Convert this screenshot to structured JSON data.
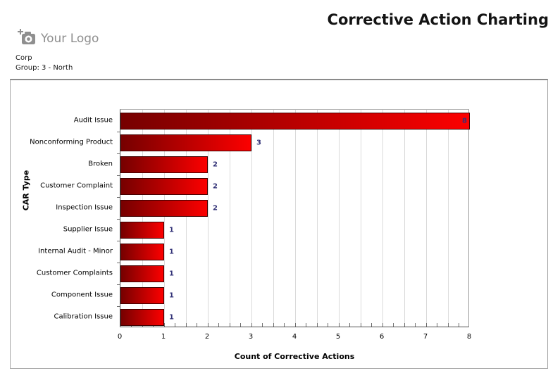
{
  "header": {
    "title": "Corrective Action Charting",
    "logo_text": "Your Logo",
    "org_line1": "Corp",
    "org_line2": "Group: 3 - North"
  },
  "icons": {
    "logo_icon": "camera-plus-icon"
  },
  "chart_data": {
    "type": "bar",
    "orientation": "horizontal",
    "xlabel": "Count of Corrective Actions",
    "ylabel": "CAR Type",
    "categories": [
      "Audit Issue",
      "Nonconforming Product",
      "Broken",
      "Customer Complaint",
      "Inspection Issue",
      "Supplier Issue",
      "Internal Audit - Minor",
      "Customer Complaints",
      "Component Issue",
      "Calibration Issue"
    ],
    "values": [
      8,
      3,
      2,
      2,
      2,
      1,
      1,
      1,
      1,
      1
    ],
    "xlim": [
      0,
      8
    ],
    "x_major_tick": 1,
    "x_minor_tick": 0.25,
    "gridline_step": 0.5,
    "grid": true,
    "legend": "none",
    "colors": {
      "bar_gradient_start": "#760000",
      "bar_gradient_end": "#fc0000",
      "bar_border": "#400000",
      "value_label": "#323277",
      "gridline": "#dadada",
      "axis_dark": "#4f4f4f",
      "axis_light": "#a8a8a8"
    }
  }
}
